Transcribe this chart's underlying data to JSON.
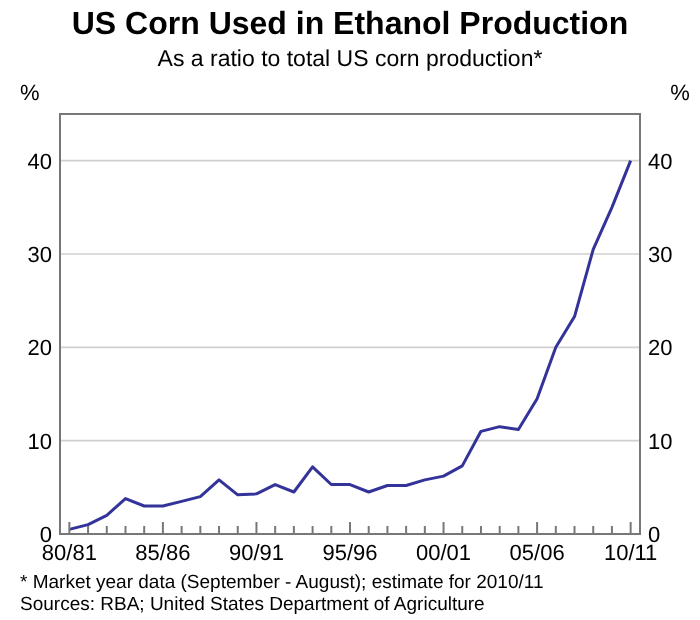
{
  "chart_data": {
    "type": "line",
    "title": "US Corn Used in Ethanol Production",
    "subtitle": "As a ratio to total US corn production*",
    "ylabel": "%",
    "y2label": "%",
    "categories": [
      "80/81",
      null,
      null,
      null,
      null,
      "85/86",
      null,
      null,
      null,
      null,
      "90/91",
      null,
      null,
      null,
      null,
      "95/96",
      null,
      null,
      null,
      null,
      "00/01",
      null,
      null,
      null,
      null,
      "05/06",
      null,
      null,
      null,
      null,
      "10/11"
    ],
    "series": [
      {
        "color": "#333399",
        "values": [
          0.5,
          1,
          2,
          3.8,
          3,
          3,
          3.5,
          4,
          5.8,
          4.2,
          4.3,
          5.3,
          4.5,
          7.2,
          5.3,
          5.3,
          4.5,
          5.2,
          5.2,
          5.8,
          6.2,
          7.3,
          11,
          11.5,
          11.2,
          14.5,
          20,
          23.3,
          30.5,
          35,
          40
        ]
      }
    ],
    "ylim": [
      0,
      45
    ],
    "yticks": [
      0,
      10,
      20,
      30,
      40
    ],
    "y2lim": [
      0,
      45
    ],
    "y2ticks": [
      0,
      10,
      20,
      30,
      40
    ],
    "grid": "y",
    "annotations": [
      "*    Market year data (September - August); estimate for 2010/11",
      "Sources: RBA; United States Department of Agriculture"
    ]
  }
}
